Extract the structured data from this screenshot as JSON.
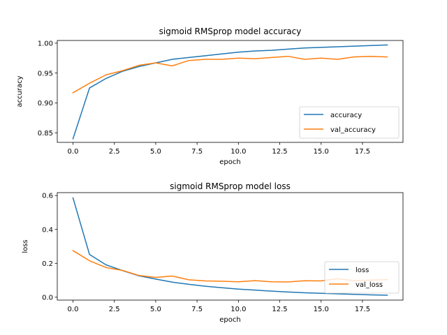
{
  "chart_data": [
    {
      "type": "line",
      "title": "sigmoid RMSprop model accuracy",
      "xlabel": "epoch",
      "ylabel": "accuracy",
      "xlim": [
        -0.95,
        19.95
      ],
      "ylim": [
        0.834,
        1.0045
      ],
      "xticks": [
        0.0,
        2.5,
        5.0,
        7.5,
        10.0,
        12.5,
        15.0,
        17.5
      ],
      "xtick_labels": [
        "0.0",
        "2.5",
        "5.0",
        "7.5",
        "10.0",
        "12.5",
        "15.0",
        "17.5"
      ],
      "yticks": [
        0.85,
        0.9,
        0.95,
        1.0
      ],
      "ytick_labels": [
        "0.85",
        "0.90",
        "0.95",
        "1.00"
      ],
      "x": [
        0,
        1,
        2,
        3,
        4,
        5,
        6,
        7,
        8,
        9,
        10,
        11,
        12,
        13,
        14,
        15,
        16,
        17,
        18,
        19
      ],
      "series": [
        {
          "name": "accuracy",
          "color": "#1f77b4",
          "values": [
            0.84,
            0.925,
            0.941,
            0.953,
            0.961,
            0.967,
            0.973,
            0.976,
            0.979,
            0.982,
            0.985,
            0.987,
            0.988,
            0.99,
            0.992,
            0.993,
            0.994,
            0.995,
            0.996,
            0.997
          ]
        },
        {
          "name": "val_accuracy",
          "color": "#ff7f0e",
          "values": [
            0.917,
            0.933,
            0.947,
            0.954,
            0.963,
            0.967,
            0.962,
            0.971,
            0.973,
            0.973,
            0.975,
            0.974,
            0.976,
            0.978,
            0.973,
            0.975,
            0.973,
            0.977,
            0.978,
            0.977
          ]
        }
      ],
      "legend_position": "lower right",
      "grid": false
    },
    {
      "type": "line",
      "title": "sigmoid RMSprop model loss",
      "xlabel": "epoch",
      "ylabel": "loss",
      "xlim": [
        -0.95,
        19.95
      ],
      "ylim": [
        -0.017,
        0.617
      ],
      "xticks": [
        0.0,
        2.5,
        5.0,
        7.5,
        10.0,
        12.5,
        15.0,
        17.5
      ],
      "xtick_labels": [
        "0.0",
        "2.5",
        "5.0",
        "7.5",
        "10.0",
        "12.5",
        "15.0",
        "17.5"
      ],
      "yticks": [
        0.0,
        0.2,
        0.4,
        0.6
      ],
      "ytick_labels": [
        "0.0",
        "0.2",
        "0.4",
        "0.6"
      ],
      "x": [
        0,
        1,
        2,
        3,
        4,
        5,
        6,
        7,
        8,
        9,
        10,
        11,
        12,
        13,
        14,
        15,
        16,
        17,
        18,
        19
      ],
      "series": [
        {
          "name": "loss",
          "color": "#1f77b4",
          "values": [
            0.586,
            0.252,
            0.191,
            0.157,
            0.126,
            0.107,
            0.089,
            0.076,
            0.065,
            0.056,
            0.048,
            0.042,
            0.036,
            0.031,
            0.026,
            0.023,
            0.02,
            0.017,
            0.014,
            0.012
          ]
        },
        {
          "name": "val_loss",
          "color": "#ff7f0e",
          "values": [
            0.275,
            0.215,
            0.175,
            0.158,
            0.128,
            0.117,
            0.125,
            0.103,
            0.096,
            0.094,
            0.091,
            0.098,
            0.091,
            0.09,
            0.097,
            0.096,
            0.109,
            0.098,
            0.101,
            0.104
          ]
        }
      ],
      "legend_position": "lower right",
      "grid": false
    }
  ]
}
